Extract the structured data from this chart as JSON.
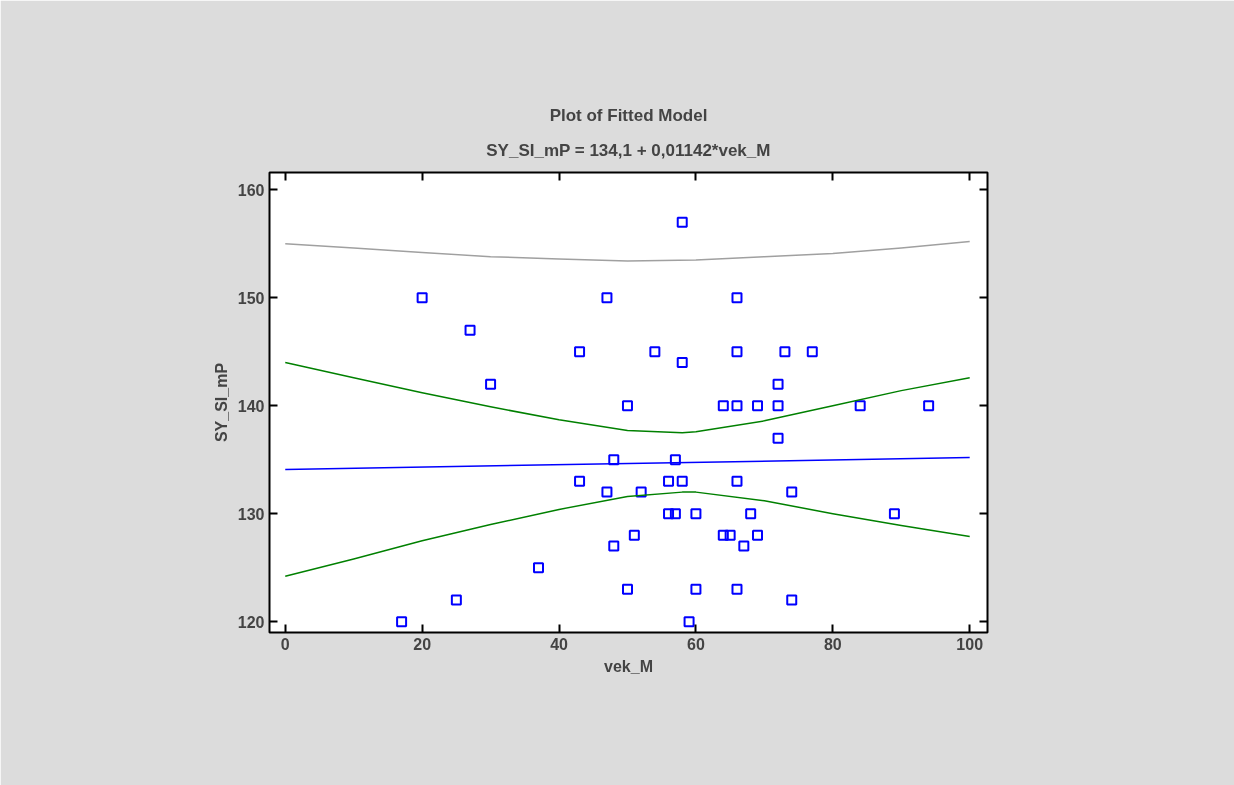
{
  "chart_data": {
    "type": "scatter",
    "title": "Plot of Fitted Model",
    "subtitle": "SY_SI_mP = 134,1 + 0,01142*vek_M",
    "xlabel": "vek_M",
    "ylabel": "SY_SI_mP",
    "xlim": [
      -2.3,
      102.6
    ],
    "ylim": [
      119,
      161.6
    ],
    "xticks": [
      0,
      20,
      40,
      60,
      80,
      100
    ],
    "yticks": [
      120,
      130,
      140,
      150,
      160
    ],
    "grid": false,
    "series": [
      {
        "color": "#0000ff",
        "marker": "square",
        "x": [
          17,
          20,
          25,
          27,
          30,
          37,
          43,
          43,
          47,
          47,
          48,
          48,
          50,
          50,
          51,
          52,
          54,
          56,
          56,
          57,
          57,
          58,
          58,
          58,
          59,
          60,
          60,
          64,
          64,
          65,
          66,
          66,
          66,
          66,
          66,
          67,
          68,
          69,
          69,
          72,
          72,
          72,
          73,
          74,
          74,
          77,
          84,
          89,
          94
        ],
        "values": [
          120,
          150,
          122,
          147,
          142,
          125,
          145,
          133,
          150,
          132,
          135,
          127,
          140,
          123,
          128,
          132,
          145,
          133,
          130,
          135,
          130,
          157,
          144,
          133,
          120,
          130,
          123,
          140,
          128,
          128,
          150,
          145,
          140,
          133,
          123,
          127,
          130,
          140,
          128,
          142,
          140,
          137,
          145,
          132,
          122,
          145,
          140,
          130,
          140
        ]
      },
      {
        "type": "line",
        "color": "#0000ff",
        "marker": "none",
        "x": [
          0,
          100
        ],
        "values": [
          134.1,
          135.2
        ]
      },
      {
        "type": "line",
        "color": "#008000",
        "marker": "none",
        "x": [
          0,
          10,
          20,
          30,
          40,
          50,
          58,
          60,
          70,
          80,
          90,
          100
        ],
        "values": [
          144.0,
          142.6,
          141.2,
          139.9,
          138.7,
          137.7,
          137.5,
          137.6,
          138.6,
          140.0,
          141.4,
          142.6
        ]
      },
      {
        "type": "line",
        "color": "#008000",
        "marker": "none",
        "x": [
          0,
          10,
          20,
          30,
          40,
          50,
          58,
          60,
          70,
          80,
          90,
          100
        ],
        "values": [
          124.2,
          125.8,
          127.5,
          129.0,
          130.4,
          131.6,
          132.0,
          132.0,
          131.2,
          130.0,
          128.9,
          127.9
        ]
      },
      {
        "type": "line",
        "color": "#a0a0a0",
        "marker": "none",
        "x": [
          0,
          10,
          20,
          30,
          40,
          50,
          60,
          70,
          80,
          90,
          100
        ],
        "values": [
          155.0,
          154.6,
          154.2,
          153.8,
          153.6,
          153.4,
          153.5,
          153.8,
          154.1,
          154.6,
          155.2
        ]
      }
    ]
  }
}
